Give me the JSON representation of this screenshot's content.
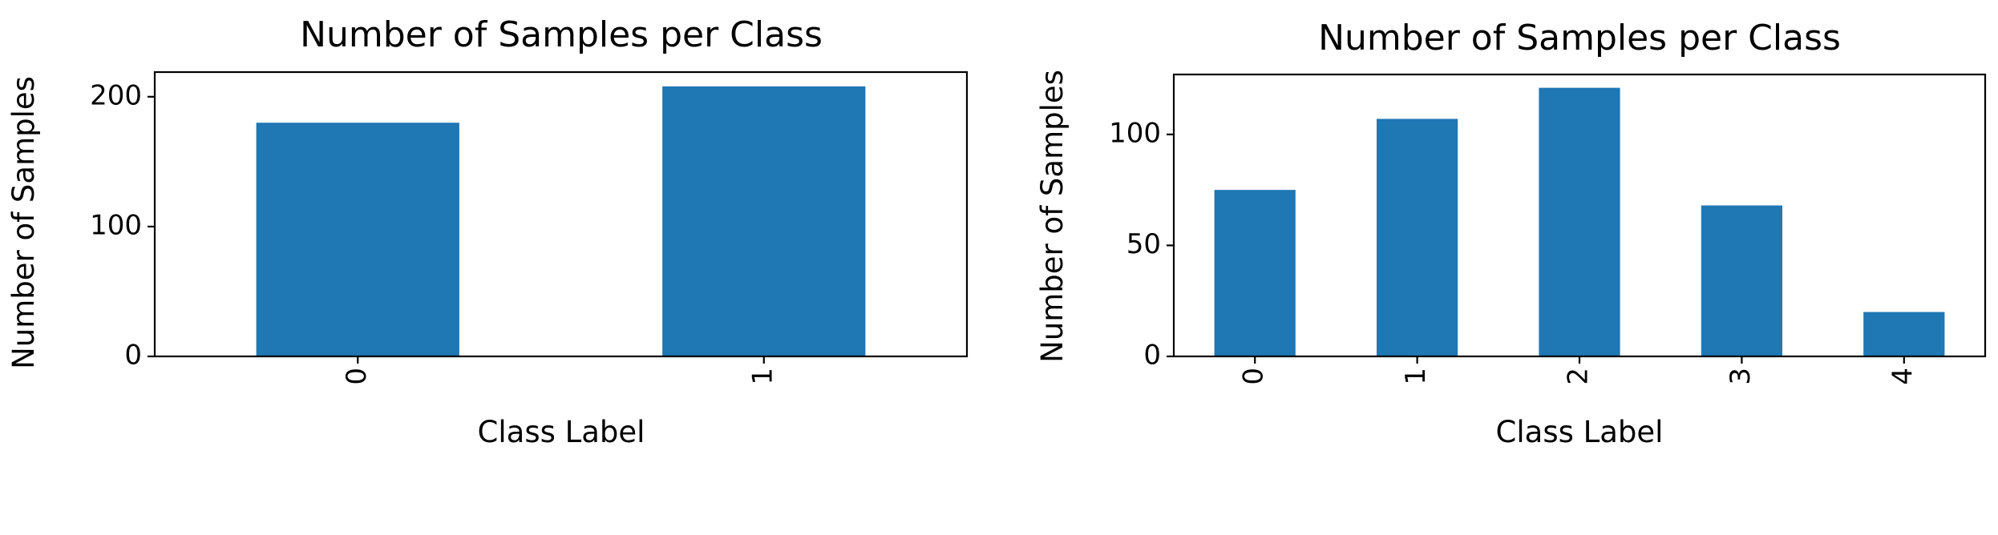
{
  "chart_data": [
    {
      "type": "bar",
      "title": "Number of Samples per Class",
      "xlabel": "Class Label",
      "ylabel": "Number of Samples",
      "categories": [
        "0",
        "1"
      ],
      "values": [
        180,
        208
      ],
      "ylim": [
        0,
        219
      ],
      "yticks": [
        0,
        100,
        200
      ],
      "bar_color": "#1f77b4",
      "grid": false
    },
    {
      "type": "bar",
      "title": "Number of Samples per Class",
      "xlabel": "Class Label",
      "ylabel": "Number of Samples",
      "categories": [
        "0",
        "1",
        "2",
        "3",
        "4"
      ],
      "values": [
        75,
        107,
        121,
        68,
        20
      ],
      "ylim": [
        0,
        127
      ],
      "yticks": [
        0,
        50,
        100
      ],
      "bar_color": "#1f77b4",
      "grid": false
    }
  ]
}
